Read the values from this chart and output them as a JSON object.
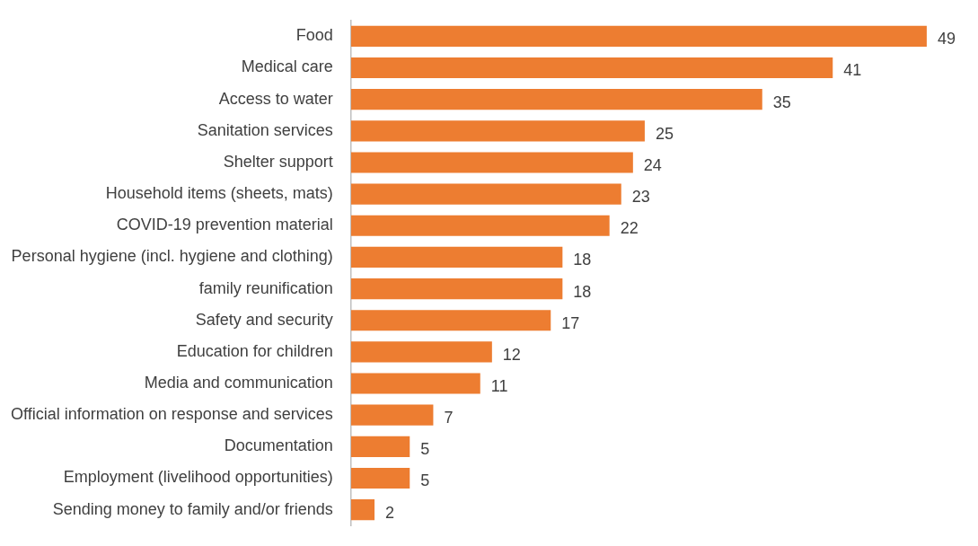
{
  "chart_data": {
    "type": "bar",
    "orientation": "horizontal",
    "categories": [
      "Food",
      "Medical care",
      "Access to water",
      "Sanitation services",
      "Shelter support",
      "Household items (sheets, mats)",
      "COVID-19 prevention material",
      "Personal hygiene (incl. hygiene and clothing)",
      "family reunification",
      "Safety and security",
      "Education for children",
      "Media and communication",
      "Official information on response and services",
      "Documentation",
      "Employment (livelihood opportunities)",
      "Sending money to family and/or friends"
    ],
    "values": [
      49,
      41,
      35,
      25,
      24,
      23,
      22,
      18,
      18,
      17,
      12,
      11,
      7,
      5,
      5,
      2
    ],
    "color": "#ed7d31",
    "data_labels": true,
    "legend": false
  }
}
